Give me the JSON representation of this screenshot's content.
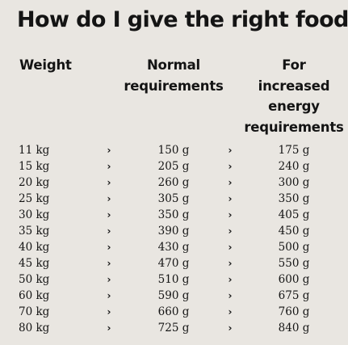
{
  "title": "How do I give the right food?",
  "headers": {
    "weight": [
      "Weight"
    ],
    "normal": [
      "Normal",
      "requirements"
    ],
    "increased": [
      "For",
      "increased",
      "energy",
      "requirements"
    ]
  },
  "arrow_glyph": "›",
  "rows": [
    {
      "weight": "11 kg",
      "normal": "150 g",
      "increased": "175 g"
    },
    {
      "weight": "15 kg",
      "normal": "205 g",
      "increased": "240 g"
    },
    {
      "weight": "20 kg",
      "normal": "260 g",
      "increased": "300 g"
    },
    {
      "weight": "25 kg",
      "normal": "305 g",
      "increased": "350 g"
    },
    {
      "weight": "30 kg",
      "normal": "350 g",
      "increased": "405 g"
    },
    {
      "weight": "35 kg",
      "normal": "390 g",
      "increased": "450 g"
    },
    {
      "weight": "40 kg",
      "normal": "430 g",
      "increased": "500 g"
    },
    {
      "weight": "45 kg",
      "normal": "470 g",
      "increased": "550 g"
    },
    {
      "weight": "50 kg",
      "normal": "510 g",
      "increased": "600 g"
    },
    {
      "weight": "60 kg",
      "normal": "590 g",
      "increased": "675 g"
    },
    {
      "weight": "70 kg",
      "normal": "660 g",
      "increased": "760 g"
    },
    {
      "weight": "80 kg",
      "normal": "725 g",
      "increased": "840 g"
    }
  ]
}
